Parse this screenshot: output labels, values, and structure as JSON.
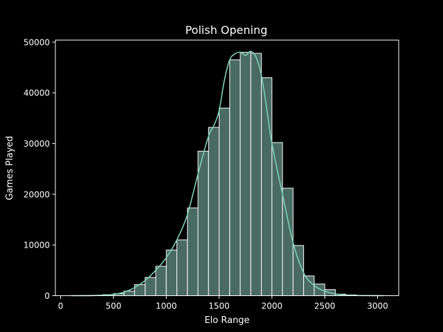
{
  "chart_data": {
    "type": "bar",
    "title": "Polish Opening",
    "xlabel": "Elo Range",
    "ylabel": "Games Played",
    "xlim": [
      -50,
      3200
    ],
    "ylim": [
      0,
      50400
    ],
    "x_ticks": [
      0,
      500,
      1000,
      1500,
      2000,
      2500,
      3000
    ],
    "y_ticks": [
      0,
      10000,
      20000,
      30000,
      40000,
      50000
    ],
    "grid": false,
    "legend": "none",
    "bin_width": 100,
    "bin_starts": [
      100,
      200,
      300,
      400,
      500,
      600,
      700,
      800,
      900,
      1000,
      1100,
      1200,
      1300,
      1400,
      1500,
      1600,
      1700,
      1800,
      1900,
      2000,
      2100,
      2200,
      2300,
      2400,
      2500,
      2600,
      2700,
      2800,
      2900,
      3000
    ],
    "values": [
      20,
      40,
      80,
      200,
      400,
      900,
      2200,
      3600,
      5800,
      9000,
      11000,
      17300,
      28500,
      33200,
      37000,
      46500,
      48000,
      47800,
      43000,
      30200,
      21200,
      9900,
      3900,
      2300,
      1200,
      300,
      150,
      60,
      30,
      10
    ],
    "kde": {
      "x": [
        100,
        300,
        500,
        600,
        700,
        800,
        900,
        1000,
        1100,
        1200,
        1300,
        1400,
        1450,
        1500,
        1550,
        1600,
        1650,
        1700,
        1750,
        1800,
        1850,
        1900,
        1950,
        2000,
        2100,
        2200,
        2300,
        2400,
        2500,
        2600,
        2700,
        2900,
        3060
      ],
      "y": [
        0,
        30,
        250,
        700,
        1600,
        3000,
        5000,
        7500,
        11000,
        16000,
        24000,
        31500,
        33500,
        36500,
        42500,
        46500,
        47700,
        48000,
        47400,
        48200,
        47000,
        43500,
        37000,
        30000,
        20000,
        10500,
        4500,
        2000,
        900,
        350,
        100,
        20,
        0
      ]
    },
    "colors": {
      "background": "#000000",
      "bar_fill": "#4a6b62",
      "bar_edge": "#ffffff",
      "kde_line": "#7ccfb5",
      "text": "#ffffff"
    }
  }
}
